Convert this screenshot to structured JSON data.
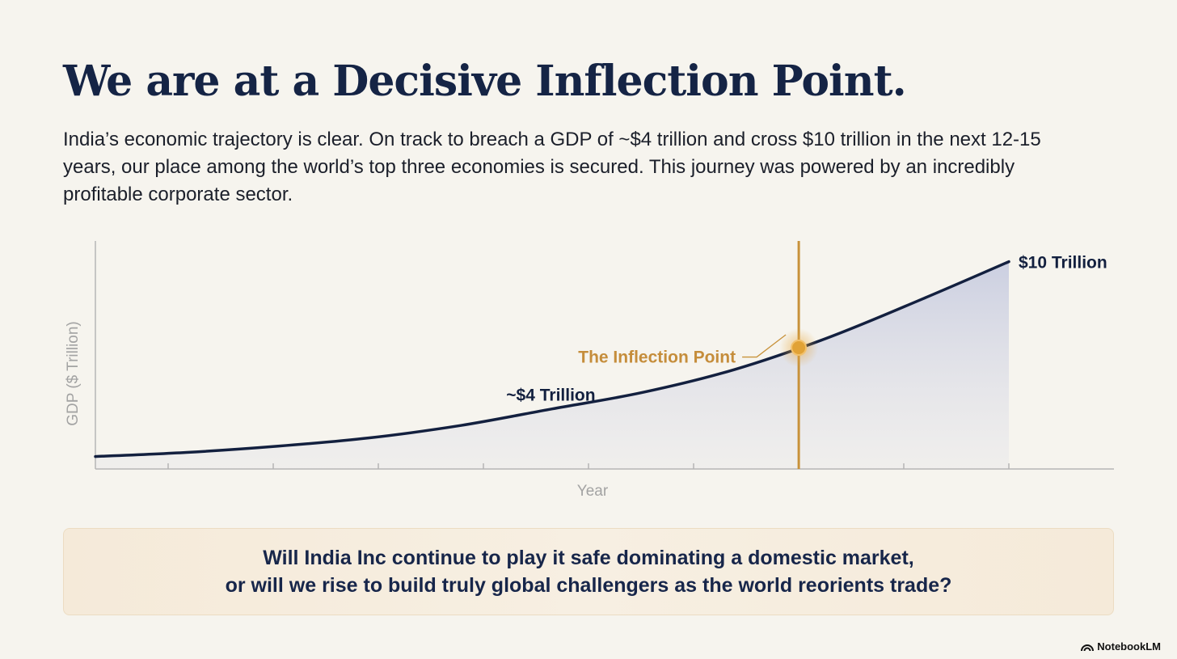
{
  "slide": {
    "title": "We are at a Decisive Inflection Point.",
    "intro": "India’s economic trajectory is clear. On track to breach a GDP of ~$4 trillion and cross $10 trillion in the next 12-15 years, our place among the world’s top three economies is secured. This journey was powered by an incredibly profitable corporate sector.",
    "callout": {
      "line1": "Will India Inc continue to play it safe dominating a domestic market,",
      "line2": "or will we rise to build truly global challengers as the world reorients trade?"
    },
    "brand": {
      "label": "NotebookLM",
      "icon": "notebooklm-logo-icon"
    }
  },
  "chart_data": {
    "type": "area",
    "title": "",
    "xlabel": "Year",
    "ylabel": "GDP ($ Trillion)",
    "grid": false,
    "x_ticks": 9,
    "xlim": [
      0,
      10
    ],
    "ylim": [
      0,
      11
    ],
    "series": [
      {
        "x": [
          0,
          1,
          2,
          3,
          4,
          5,
          6,
          7,
          8,
          9,
          10
        ],
        "values": [
          0.6,
          0.8,
          1.1,
          1.5,
          2.1,
          2.9,
          3.7,
          4.8,
          6.3,
          8.1,
          10
        ]
      }
    ],
    "annotations": [
      {
        "label": "~$4 Trillion",
        "x": 5.1,
        "y": 3.1
      },
      {
        "label": "$10 Trillion",
        "x": 10,
        "y": 10
      },
      {
        "label": "The Inflection Point",
        "x": 7.7,
        "y": 5.4
      }
    ],
    "colors": {
      "line": "#13203f",
      "area": "#c9cde0",
      "inflection": "#c8923a",
      "inflection_label": "#c58d3b",
      "axis": "#b5b5b5",
      "axis_label": "#a3a3a3"
    }
  }
}
